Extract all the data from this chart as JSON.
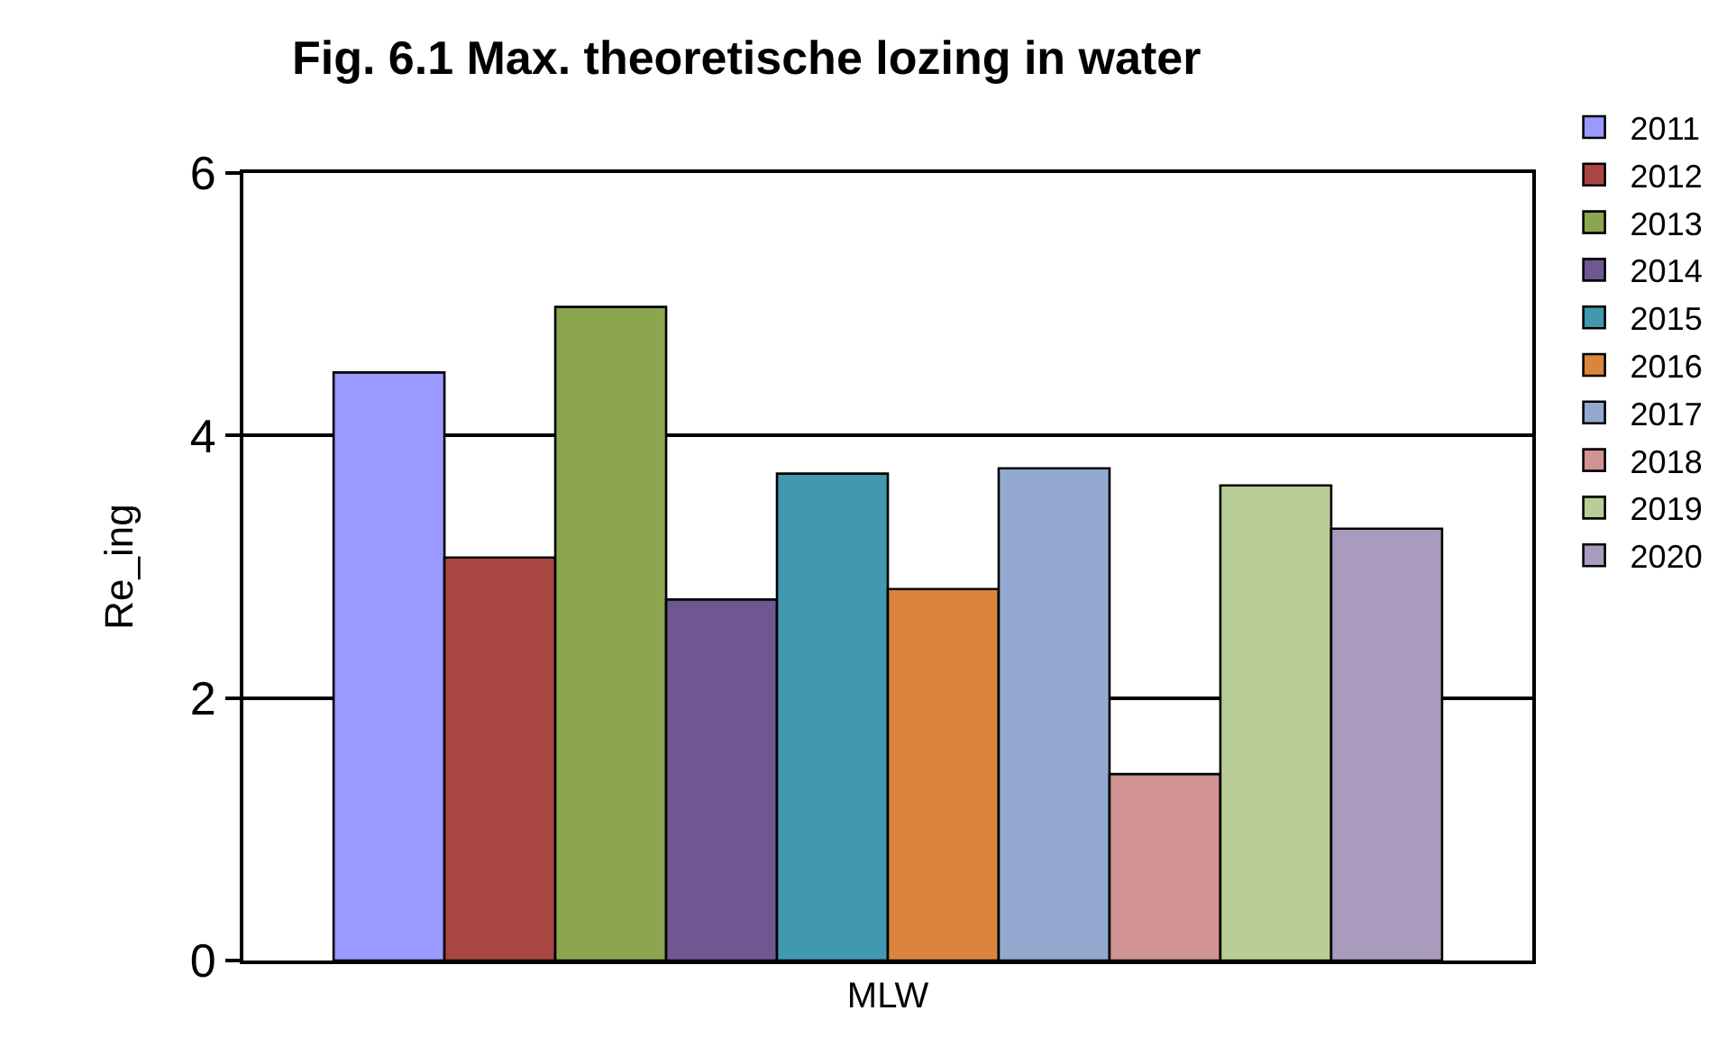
{
  "chart_data": {
    "type": "bar",
    "title": "Fig. 6.1 Max. theoretische lozing in water",
    "ylabel": "Re_ing",
    "categories": [
      "MLW"
    ],
    "series": [
      {
        "name": "2011",
        "color": "#9999ff",
        "values": [
          4.48
        ]
      },
      {
        "name": "2012",
        "color": "#a94543",
        "values": [
          3.07
        ]
      },
      {
        "name": "2013",
        "color": "#8ba64f",
        "values": [
          4.98
        ]
      },
      {
        "name": "2014",
        "color": "#6f5791",
        "values": [
          2.75
        ]
      },
      {
        "name": "2015",
        "color": "#4198af",
        "values": [
          3.71
        ]
      },
      {
        "name": "2016",
        "color": "#db843d",
        "values": [
          2.83
        ]
      },
      {
        "name": "2017",
        "color": "#93a9cf",
        "values": [
          3.75
        ]
      },
      {
        "name": "2018",
        "color": "#d19392",
        "values": [
          1.42
        ]
      },
      {
        "name": "2019",
        "color": "#b9cd96",
        "values": [
          3.62
        ]
      },
      {
        "name": "2020",
        "color": "#a99bbd",
        "values": [
          3.29
        ]
      }
    ],
    "ylim": [
      0,
      6
    ],
    "yticks": [
      0,
      2,
      4,
      6
    ],
    "grid": "y",
    "legend": "right"
  }
}
